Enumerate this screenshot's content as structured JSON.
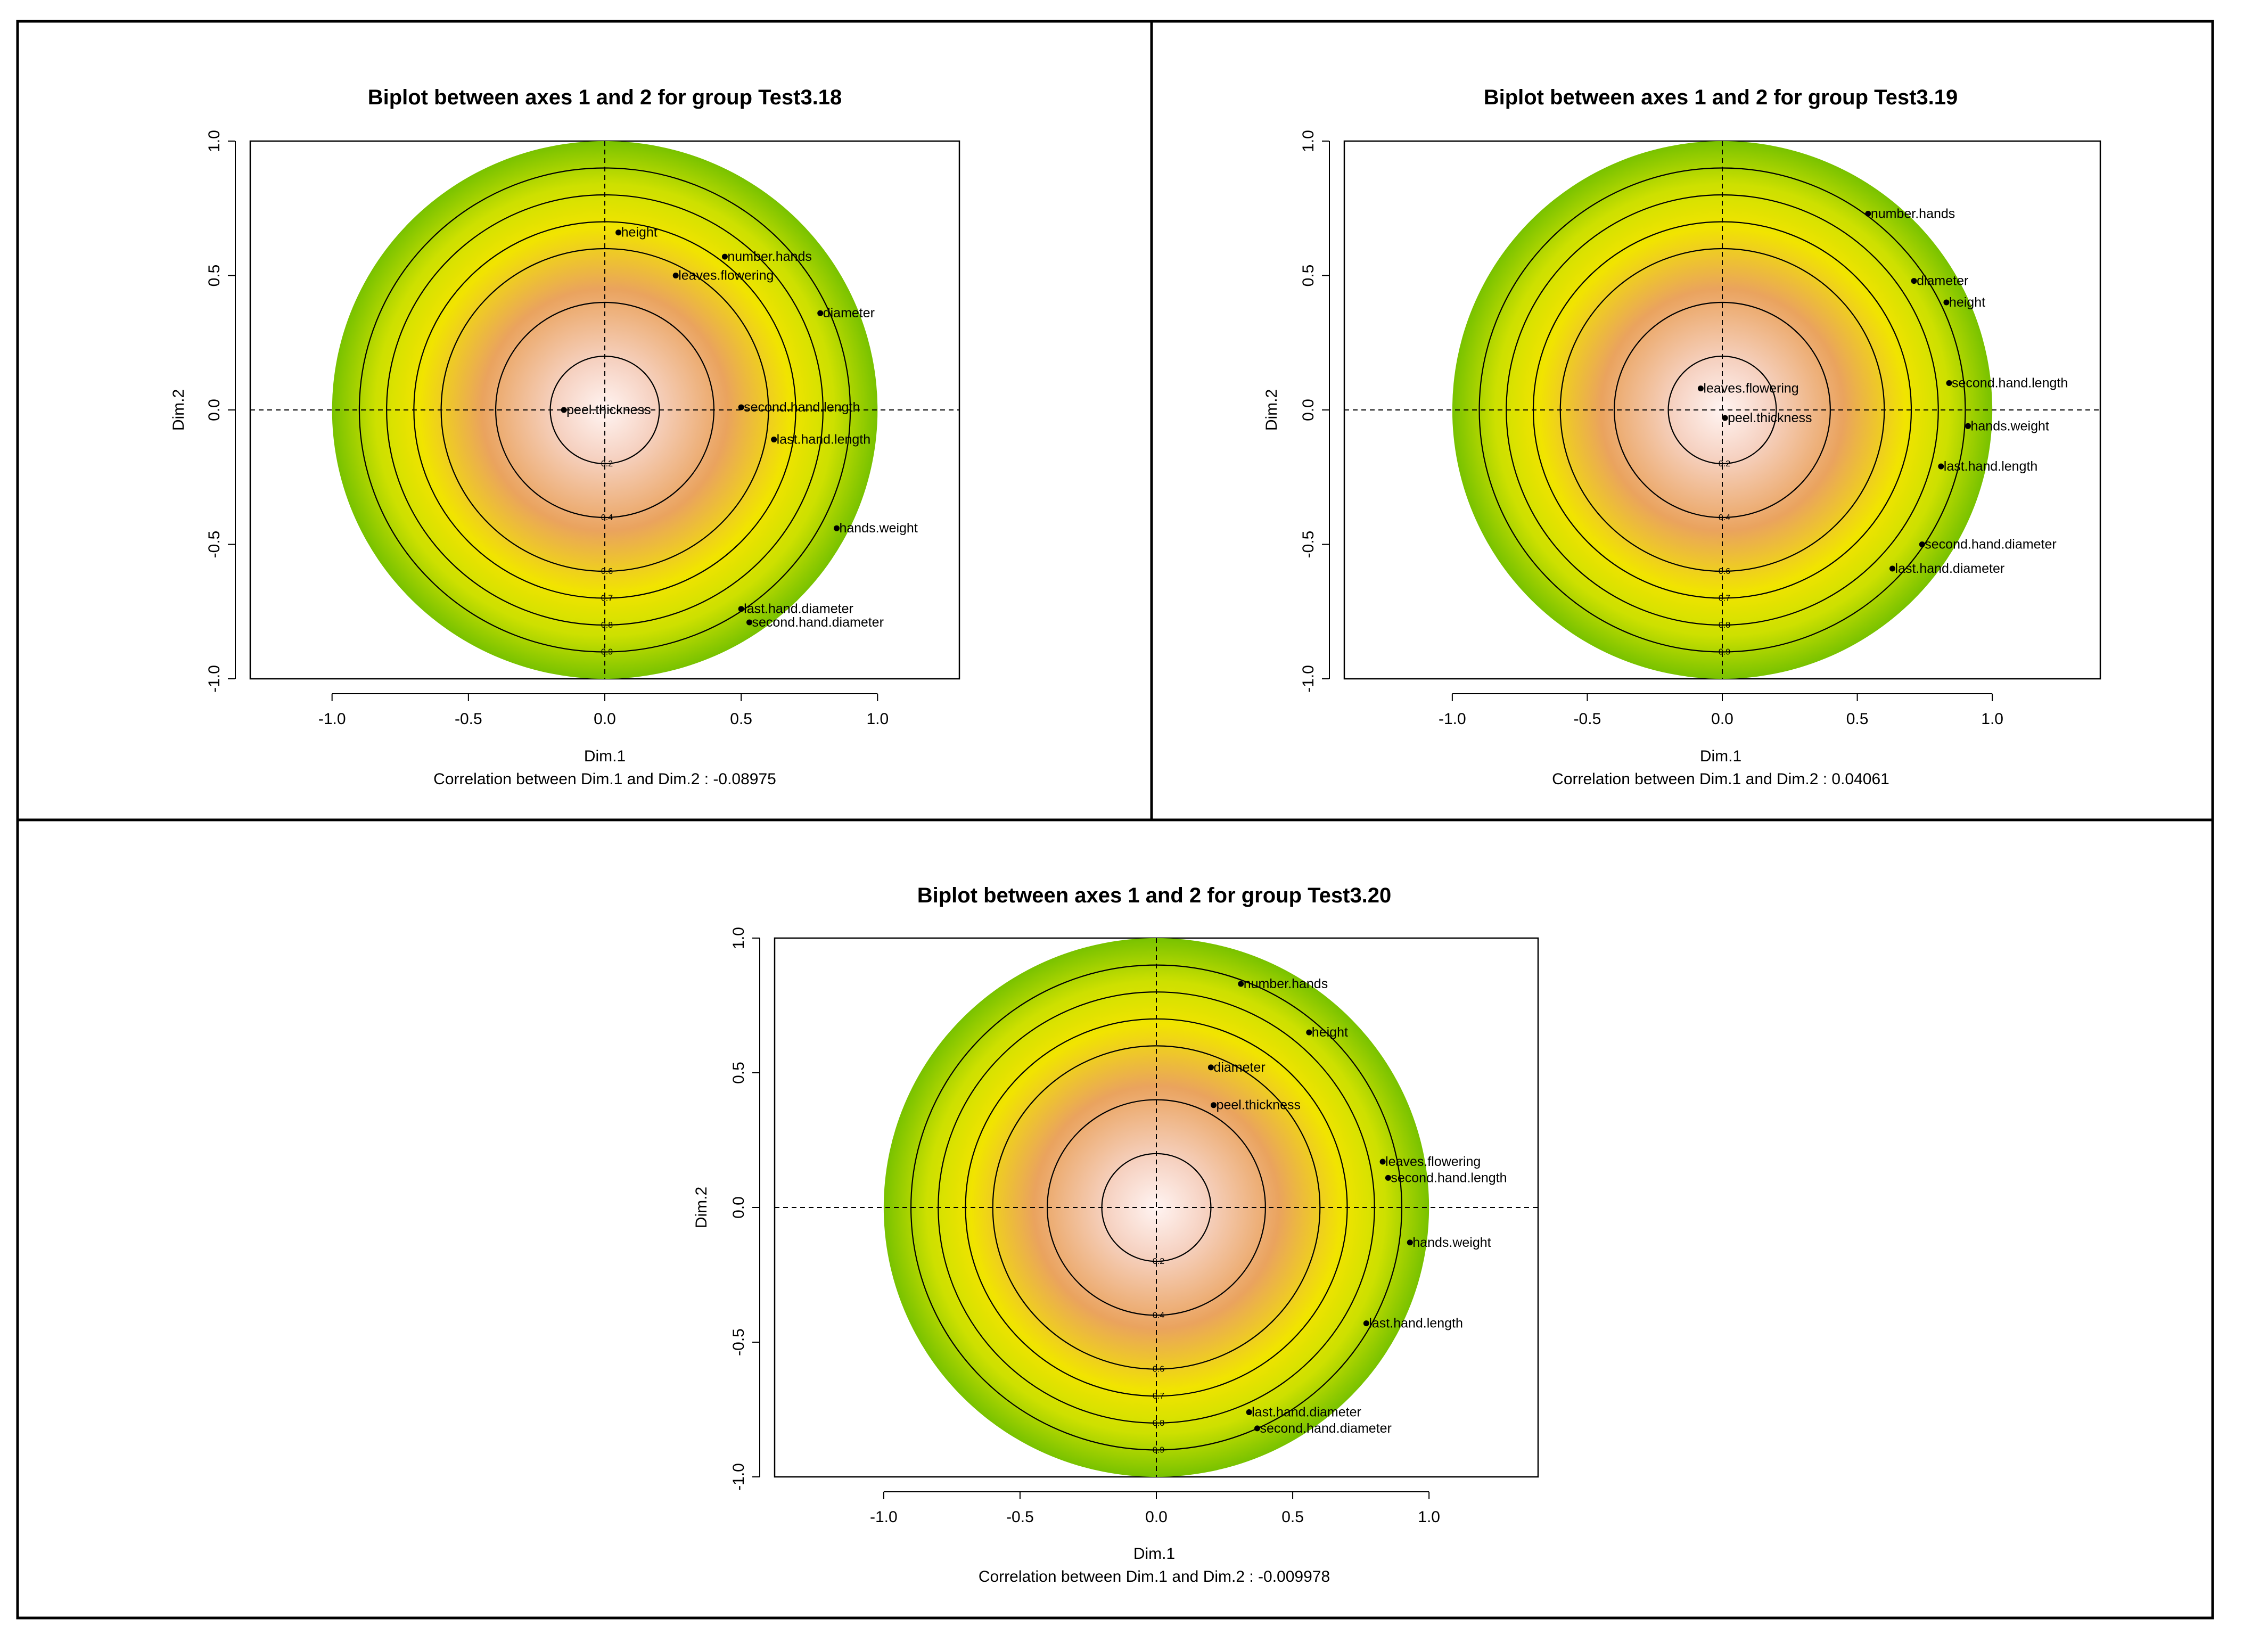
{
  "colors": {
    "disc_center": "#fff4f2",
    "disc_mid": "#e9a45c",
    "disc_yellow": "#f1e600",
    "disc_edge": "#7fc800",
    "panel_border": "#000000"
  },
  "chart_data": [
    {
      "type": "scatter",
      "title": "Biplot between axes 1 and 2 for group Test3.18",
      "xlabel": "Dim.1",
      "ylabel": "Dim.2",
      "xlim": [
        -1.3,
        1.3
      ],
      "ylim": [
        -1.0,
        1.0
      ],
      "xticks": [
        -1.0,
        -0.5,
        0.0,
        0.5,
        1.0
      ],
      "yticks": [
        -1.0,
        -0.5,
        0.0,
        0.5,
        1.0
      ],
      "xtick_labels": [
        "-1.0",
        "-0.5",
        "0.0",
        "0.5",
        "1.0"
      ],
      "ytick_labels": [
        "-1.0",
        "-0.5",
        "0.0",
        "0.5",
        "1.0"
      ],
      "subtitle": "Correlation between Dim.1 and Dim.2 : -0.08975",
      "rings": [
        {
          "r": 0.2,
          "label": "0.2"
        },
        {
          "r": 0.4,
          "label": "0.4"
        },
        {
          "r": 0.6,
          "label": "0.6"
        },
        {
          "r": 0.7,
          "label": "0.7"
        },
        {
          "r": 0.8,
          "label": "0.8"
        },
        {
          "r": 0.9,
          "label": "0.9"
        }
      ],
      "points": [
        {
          "name": "height",
          "x": 0.05,
          "y": 0.66
        },
        {
          "name": "number.hands",
          "x": 0.44,
          "y": 0.57
        },
        {
          "name": "leaves.flowering",
          "x": 0.26,
          "y": 0.5
        },
        {
          "name": "diameter",
          "x": 0.79,
          "y": 0.36
        },
        {
          "name": "peel.thickness",
          "x": -0.15,
          "y": 0.0
        },
        {
          "name": "second.hand.length",
          "x": 0.5,
          "y": 0.01
        },
        {
          "name": "last.hand.length",
          "x": 0.62,
          "y": -0.11
        },
        {
          "name": "hands.weight",
          "x": 0.85,
          "y": -0.44
        },
        {
          "name": "last.hand.diameter",
          "x": 0.5,
          "y": -0.74
        },
        {
          "name": "second.hand.diameter",
          "x": 0.53,
          "y": -0.79
        }
      ]
    },
    {
      "type": "scatter",
      "title": "Biplot between axes 1 and 2 for group Test3.19",
      "xlabel": "Dim.1",
      "ylabel": "Dim.2",
      "xlim": [
        -1.4,
        1.4
      ],
      "ylim": [
        -1.0,
        1.0
      ],
      "xticks": [
        -1.0,
        -0.5,
        0.0,
        0.5,
        1.0
      ],
      "yticks": [
        -1.0,
        -0.5,
        0.0,
        0.5,
        1.0
      ],
      "xtick_labels": [
        "-1.0",
        "-0.5",
        "0.0",
        "0.5",
        "1.0"
      ],
      "ytick_labels": [
        "-1.0",
        "-0.5",
        "0.0",
        "0.5",
        "1.0"
      ],
      "subtitle": "Correlation between Dim.1 and Dim.2 : 0.04061",
      "rings": [
        {
          "r": 0.2,
          "label": "0.2"
        },
        {
          "r": 0.4,
          "label": "0.4"
        },
        {
          "r": 0.6,
          "label": "0.6"
        },
        {
          "r": 0.7,
          "label": "0.7"
        },
        {
          "r": 0.8,
          "label": "0.8"
        },
        {
          "r": 0.9,
          "label": "0.9"
        }
      ],
      "points": [
        {
          "name": "number.hands",
          "x": 0.54,
          "y": 0.73
        },
        {
          "name": "diameter",
          "x": 0.71,
          "y": 0.48
        },
        {
          "name": "height",
          "x": 0.83,
          "y": 0.4
        },
        {
          "name": "second.hand.length",
          "x": 0.84,
          "y": 0.1
        },
        {
          "name": "leaves.flowering",
          "x": -0.08,
          "y": 0.08
        },
        {
          "name": "peel.thickness",
          "x": 0.01,
          "y": -0.03
        },
        {
          "name": "hands.weight",
          "x": 0.91,
          "y": -0.06
        },
        {
          "name": "last.hand.length",
          "x": 0.81,
          "y": -0.21
        },
        {
          "name": "second.hand.diameter",
          "x": 0.74,
          "y": -0.5
        },
        {
          "name": "last.hand.diameter",
          "x": 0.63,
          "y": -0.59
        }
      ]
    },
    {
      "type": "scatter",
      "title": "Biplot between axes 1 and 2 for group Test3.20",
      "xlabel": "Dim.1",
      "ylabel": "Dim.2",
      "xlim": [
        -1.4,
        1.4
      ],
      "ylim": [
        -1.0,
        1.0
      ],
      "xticks": [
        -1.0,
        -0.5,
        0.0,
        0.5,
        1.0
      ],
      "yticks": [
        -1.0,
        -0.5,
        0.0,
        0.5,
        1.0
      ],
      "xtick_labels": [
        "-1.0",
        "-0.5",
        "0.0",
        "0.5",
        "1.0"
      ],
      "ytick_labels": [
        "-1.0",
        "-0.5",
        "0.0",
        "0.5",
        "1.0"
      ],
      "subtitle": "Correlation between Dim.1 and Dim.2 : -0.009978",
      "rings": [
        {
          "r": 0.2,
          "label": "0.2"
        },
        {
          "r": 0.4,
          "label": "0.4"
        },
        {
          "r": 0.6,
          "label": "0.6"
        },
        {
          "r": 0.7,
          "label": "0.7"
        },
        {
          "r": 0.8,
          "label": "0.8"
        },
        {
          "r": 0.9,
          "label": "0.9"
        }
      ],
      "points": [
        {
          "name": "number.hands",
          "x": 0.31,
          "y": 0.83
        },
        {
          "name": "height",
          "x": 0.56,
          "y": 0.65
        },
        {
          "name": "diameter",
          "x": 0.2,
          "y": 0.52
        },
        {
          "name": "peel.thickness",
          "x": 0.21,
          "y": 0.38
        },
        {
          "name": "leaves.flowering",
          "x": 0.83,
          "y": 0.17
        },
        {
          "name": "second.hand.length",
          "x": 0.85,
          "y": 0.11
        },
        {
          "name": "hands.weight",
          "x": 0.93,
          "y": -0.13
        },
        {
          "name": "last.hand.length",
          "x": 0.77,
          "y": -0.43
        },
        {
          "name": "last.hand.diameter",
          "x": 0.34,
          "y": -0.76
        },
        {
          "name": "second.hand.diameter",
          "x": 0.37,
          "y": -0.82
        }
      ]
    }
  ]
}
